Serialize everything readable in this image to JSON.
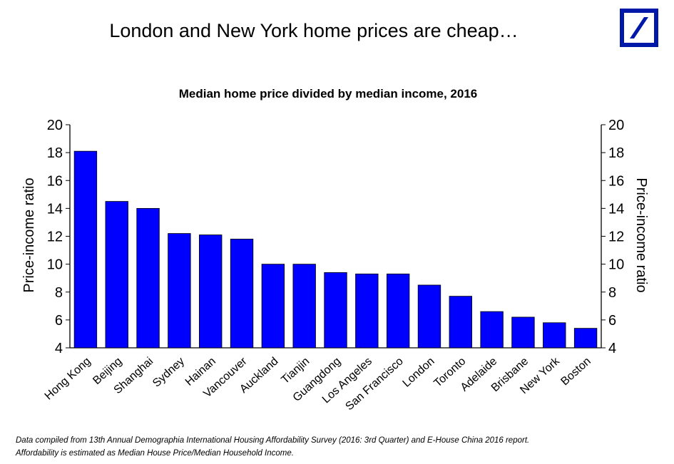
{
  "headline": "London and New York home prices are cheap…",
  "footnote": {
    "line1": "Data compiled from 13th Annual Demographia International Housing Affordability Survey (2016: 3rd Quarter)  and  E-House China  2016 report.",
    "line2": "Affordability is estimated as Median House Price/Median Household Income."
  },
  "logo": {
    "icon": "deutsche-bank-logo",
    "color": "#0018a8"
  },
  "chart_data": {
    "type": "bar",
    "title": "Median home price divided by median income, 2016",
    "ylabel": "Price-income ratio",
    "ylabel_right": "Price-income ratio",
    "ylim": [
      4,
      20
    ],
    "yticks": [
      "4",
      "6",
      "8",
      "10",
      "12",
      "14",
      "16",
      "18",
      "20"
    ],
    "bar_color": "#0000ff",
    "grid": false,
    "categories": [
      "Hong Kong",
      "Beijing",
      "Shanghai",
      "Sydney",
      "Hainan",
      "Vancouver",
      "Auckland",
      "Tianjin",
      "Guangdong",
      "Los Angeles",
      "San Francisco",
      "London",
      "Toronto",
      "Adelaide",
      "Brisbane",
      "New York",
      "Boston"
    ],
    "values": [
      18.1,
      14.5,
      14.0,
      12.2,
      12.1,
      11.8,
      10.0,
      10.0,
      9.4,
      9.3,
      9.3,
      8.5,
      7.7,
      6.6,
      6.2,
      5.8,
      5.4
    ]
  }
}
